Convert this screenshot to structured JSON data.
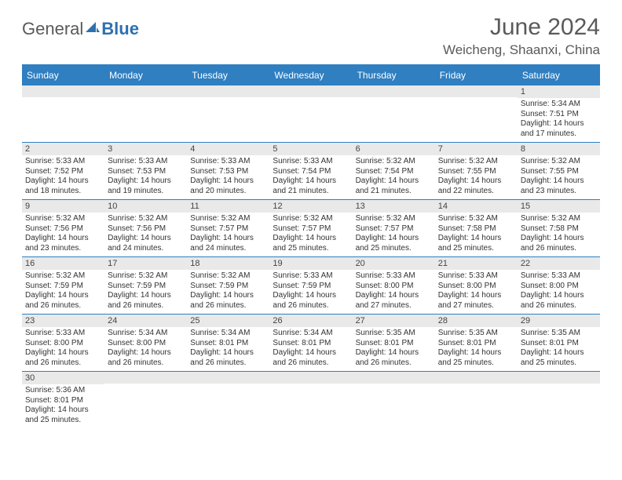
{
  "brand": {
    "part1": "General",
    "part2": "Blue"
  },
  "title": "June 2024",
  "location": "Weicheng, Shaanxi, China",
  "colors": {
    "header_bg": "#2f7fc1",
    "header_text": "#ffffff",
    "daynum_bg": "#e9e9e9",
    "border": "#2f7fc1",
    "text": "#333333",
    "title_text": "#5a5a5a"
  },
  "dow": [
    "Sunday",
    "Monday",
    "Tuesday",
    "Wednesday",
    "Thursday",
    "Friday",
    "Saturday"
  ],
  "weeks": [
    [
      {
        "n": "",
        "sr": "",
        "ss": "",
        "dl": ""
      },
      {
        "n": "",
        "sr": "",
        "ss": "",
        "dl": ""
      },
      {
        "n": "",
        "sr": "",
        "ss": "",
        "dl": ""
      },
      {
        "n": "",
        "sr": "",
        "ss": "",
        "dl": ""
      },
      {
        "n": "",
        "sr": "",
        "ss": "",
        "dl": ""
      },
      {
        "n": "",
        "sr": "",
        "ss": "",
        "dl": ""
      },
      {
        "n": "1",
        "sr": "Sunrise: 5:34 AM",
        "ss": "Sunset: 7:51 PM",
        "dl": "Daylight: 14 hours and 17 minutes."
      }
    ],
    [
      {
        "n": "2",
        "sr": "Sunrise: 5:33 AM",
        "ss": "Sunset: 7:52 PM",
        "dl": "Daylight: 14 hours and 18 minutes."
      },
      {
        "n": "3",
        "sr": "Sunrise: 5:33 AM",
        "ss": "Sunset: 7:53 PM",
        "dl": "Daylight: 14 hours and 19 minutes."
      },
      {
        "n": "4",
        "sr": "Sunrise: 5:33 AM",
        "ss": "Sunset: 7:53 PM",
        "dl": "Daylight: 14 hours and 20 minutes."
      },
      {
        "n": "5",
        "sr": "Sunrise: 5:33 AM",
        "ss": "Sunset: 7:54 PM",
        "dl": "Daylight: 14 hours and 21 minutes."
      },
      {
        "n": "6",
        "sr": "Sunrise: 5:32 AM",
        "ss": "Sunset: 7:54 PM",
        "dl": "Daylight: 14 hours and 21 minutes."
      },
      {
        "n": "7",
        "sr": "Sunrise: 5:32 AM",
        "ss": "Sunset: 7:55 PM",
        "dl": "Daylight: 14 hours and 22 minutes."
      },
      {
        "n": "8",
        "sr": "Sunrise: 5:32 AM",
        "ss": "Sunset: 7:55 PM",
        "dl": "Daylight: 14 hours and 23 minutes."
      }
    ],
    [
      {
        "n": "9",
        "sr": "Sunrise: 5:32 AM",
        "ss": "Sunset: 7:56 PM",
        "dl": "Daylight: 14 hours and 23 minutes."
      },
      {
        "n": "10",
        "sr": "Sunrise: 5:32 AM",
        "ss": "Sunset: 7:56 PM",
        "dl": "Daylight: 14 hours and 24 minutes."
      },
      {
        "n": "11",
        "sr": "Sunrise: 5:32 AM",
        "ss": "Sunset: 7:57 PM",
        "dl": "Daylight: 14 hours and 24 minutes."
      },
      {
        "n": "12",
        "sr": "Sunrise: 5:32 AM",
        "ss": "Sunset: 7:57 PM",
        "dl": "Daylight: 14 hours and 25 minutes."
      },
      {
        "n": "13",
        "sr": "Sunrise: 5:32 AM",
        "ss": "Sunset: 7:57 PM",
        "dl": "Daylight: 14 hours and 25 minutes."
      },
      {
        "n": "14",
        "sr": "Sunrise: 5:32 AM",
        "ss": "Sunset: 7:58 PM",
        "dl": "Daylight: 14 hours and 25 minutes."
      },
      {
        "n": "15",
        "sr": "Sunrise: 5:32 AM",
        "ss": "Sunset: 7:58 PM",
        "dl": "Daylight: 14 hours and 26 minutes."
      }
    ],
    [
      {
        "n": "16",
        "sr": "Sunrise: 5:32 AM",
        "ss": "Sunset: 7:59 PM",
        "dl": "Daylight: 14 hours and 26 minutes."
      },
      {
        "n": "17",
        "sr": "Sunrise: 5:32 AM",
        "ss": "Sunset: 7:59 PM",
        "dl": "Daylight: 14 hours and 26 minutes."
      },
      {
        "n": "18",
        "sr": "Sunrise: 5:32 AM",
        "ss": "Sunset: 7:59 PM",
        "dl": "Daylight: 14 hours and 26 minutes."
      },
      {
        "n": "19",
        "sr": "Sunrise: 5:33 AM",
        "ss": "Sunset: 7:59 PM",
        "dl": "Daylight: 14 hours and 26 minutes."
      },
      {
        "n": "20",
        "sr": "Sunrise: 5:33 AM",
        "ss": "Sunset: 8:00 PM",
        "dl": "Daylight: 14 hours and 27 minutes."
      },
      {
        "n": "21",
        "sr": "Sunrise: 5:33 AM",
        "ss": "Sunset: 8:00 PM",
        "dl": "Daylight: 14 hours and 27 minutes."
      },
      {
        "n": "22",
        "sr": "Sunrise: 5:33 AM",
        "ss": "Sunset: 8:00 PM",
        "dl": "Daylight: 14 hours and 26 minutes."
      }
    ],
    [
      {
        "n": "23",
        "sr": "Sunrise: 5:33 AM",
        "ss": "Sunset: 8:00 PM",
        "dl": "Daylight: 14 hours and 26 minutes."
      },
      {
        "n": "24",
        "sr": "Sunrise: 5:34 AM",
        "ss": "Sunset: 8:00 PM",
        "dl": "Daylight: 14 hours and 26 minutes."
      },
      {
        "n": "25",
        "sr": "Sunrise: 5:34 AM",
        "ss": "Sunset: 8:01 PM",
        "dl": "Daylight: 14 hours and 26 minutes."
      },
      {
        "n": "26",
        "sr": "Sunrise: 5:34 AM",
        "ss": "Sunset: 8:01 PM",
        "dl": "Daylight: 14 hours and 26 minutes."
      },
      {
        "n": "27",
        "sr": "Sunrise: 5:35 AM",
        "ss": "Sunset: 8:01 PM",
        "dl": "Daylight: 14 hours and 26 minutes."
      },
      {
        "n": "28",
        "sr": "Sunrise: 5:35 AM",
        "ss": "Sunset: 8:01 PM",
        "dl": "Daylight: 14 hours and 25 minutes."
      },
      {
        "n": "29",
        "sr": "Sunrise: 5:35 AM",
        "ss": "Sunset: 8:01 PM",
        "dl": "Daylight: 14 hours and 25 minutes."
      }
    ],
    [
      {
        "n": "30",
        "sr": "Sunrise: 5:36 AM",
        "ss": "Sunset: 8:01 PM",
        "dl": "Daylight: 14 hours and 25 minutes."
      },
      {
        "n": "",
        "sr": "",
        "ss": "",
        "dl": ""
      },
      {
        "n": "",
        "sr": "",
        "ss": "",
        "dl": ""
      },
      {
        "n": "",
        "sr": "",
        "ss": "",
        "dl": ""
      },
      {
        "n": "",
        "sr": "",
        "ss": "",
        "dl": ""
      },
      {
        "n": "",
        "sr": "",
        "ss": "",
        "dl": ""
      },
      {
        "n": "",
        "sr": "",
        "ss": "",
        "dl": ""
      }
    ]
  ]
}
